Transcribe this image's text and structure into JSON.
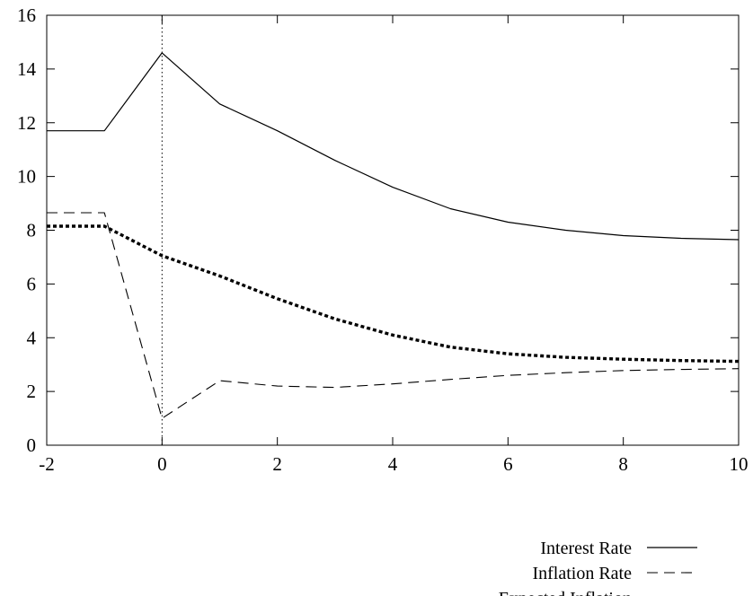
{
  "chart_data": {
    "type": "line",
    "title": "",
    "xlabel": "",
    "ylabel": "",
    "xlim": [
      -2,
      10
    ],
    "ylim": [
      0,
      16
    ],
    "xticks": [
      -2,
      0,
      2,
      4,
      6,
      8,
      10
    ],
    "yticks": [
      0,
      2,
      4,
      6,
      8,
      10,
      12,
      14,
      16
    ],
    "x_tick_labels": [
      "-2",
      "0",
      "2",
      "4",
      "6",
      "8",
      "10"
    ],
    "y_tick_labels": [
      "0",
      "2",
      "4",
      "6",
      "8",
      "10",
      "12",
      "14",
      "16"
    ],
    "grid": false,
    "vertical_reference_line": {
      "x": 0,
      "style": "dotted"
    },
    "legend": {
      "placement": "below-right"
    },
    "series": [
      {
        "name": "Interest Rate",
        "style": "solid",
        "x": [
          -2,
          -1,
          0,
          1,
          2,
          3,
          4,
          5,
          6,
          7,
          8,
          9,
          10
        ],
        "values": [
          11.7,
          11.7,
          14.6,
          12.7,
          11.7,
          10.6,
          9.6,
          8.8,
          8.3,
          8.0,
          7.8,
          7.7,
          7.65
        ]
      },
      {
        "name": "Inflation Rate",
        "style": "dashed",
        "x": [
          -2,
          -1,
          0,
          1,
          2,
          3,
          4,
          5,
          6,
          7,
          8,
          9,
          10
        ],
        "values": [
          8.65,
          8.65,
          1.0,
          2.4,
          2.2,
          2.15,
          2.28,
          2.45,
          2.6,
          2.7,
          2.78,
          2.82,
          2.85
        ]
      },
      {
        "name": "Expected Inflation",
        "style": "bold-dotted",
        "x": [
          -2,
          -1,
          0,
          1,
          2,
          3,
          4,
          5,
          6,
          7,
          8,
          9,
          10
        ],
        "values": [
          8.15,
          8.15,
          7.05,
          6.3,
          5.45,
          4.7,
          4.1,
          3.65,
          3.4,
          3.27,
          3.2,
          3.15,
          3.12
        ]
      }
    ]
  }
}
